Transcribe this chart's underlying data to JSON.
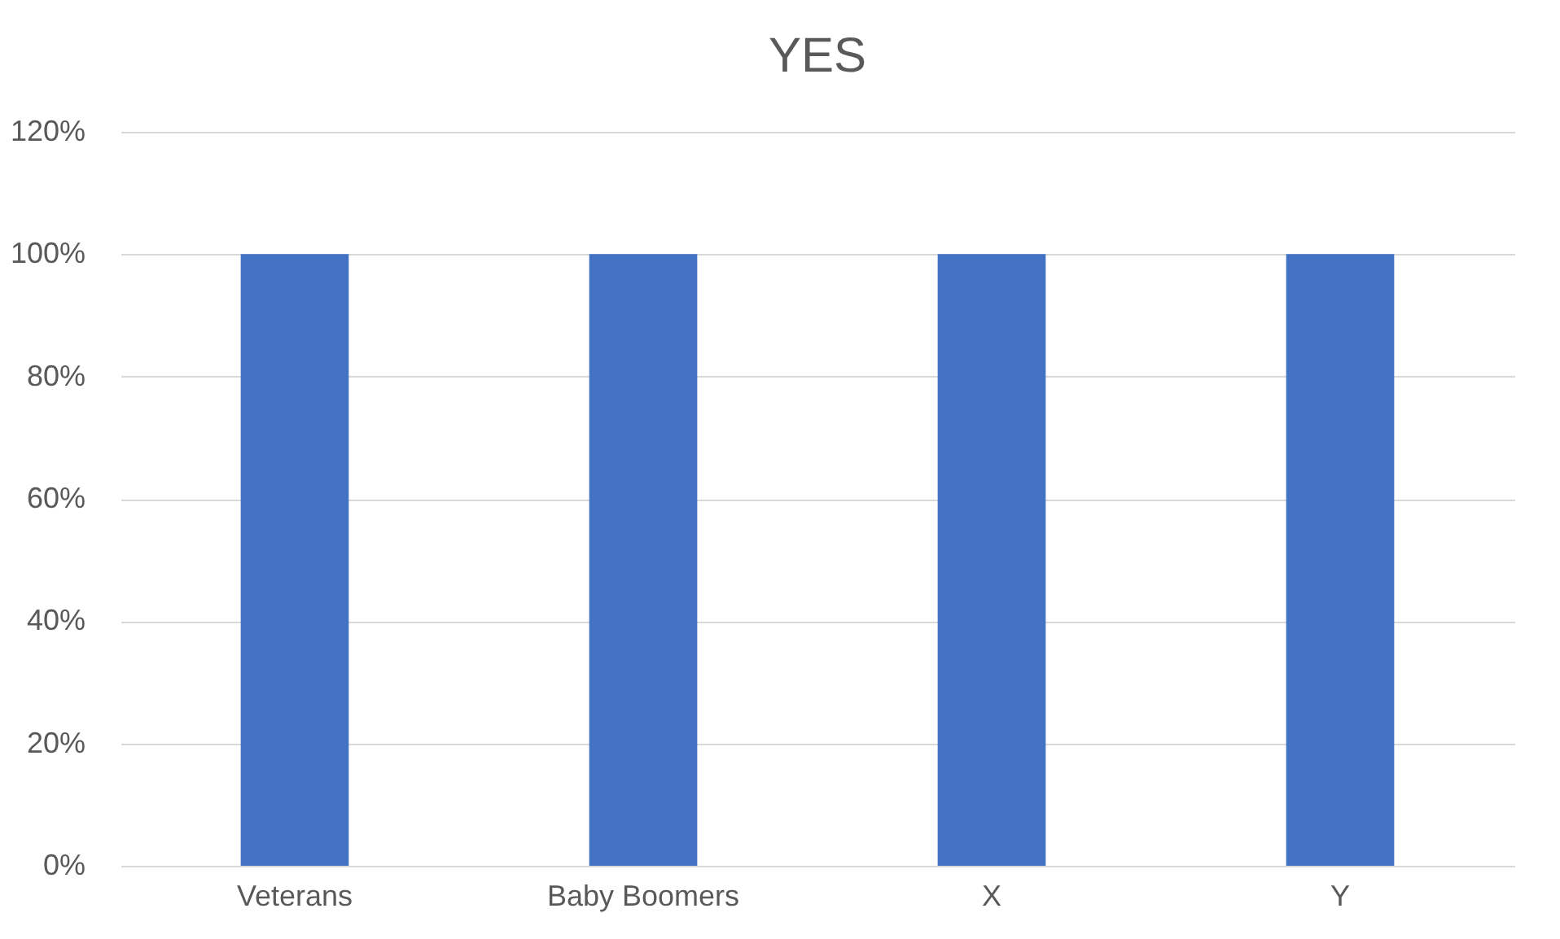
{
  "chart_data": {
    "type": "bar",
    "title": "YES",
    "categories": [
      "Veterans",
      "Baby Boomers",
      "X",
      "Y"
    ],
    "values": [
      100,
      100,
      100,
      100
    ],
    "color": "#4472c4",
    "ylim": [
      0,
      120
    ],
    "yticks": [
      {
        "value": 0,
        "label": "0%"
      },
      {
        "value": 20,
        "label": "20%"
      },
      {
        "value": 40,
        "label": "40%"
      },
      {
        "value": 60,
        "label": "60%"
      },
      {
        "value": 80,
        "label": "80%"
      },
      {
        "value": 100,
        "label": "100%"
      },
      {
        "value": 120,
        "label": "120%"
      }
    ],
    "grid": "y"
  }
}
